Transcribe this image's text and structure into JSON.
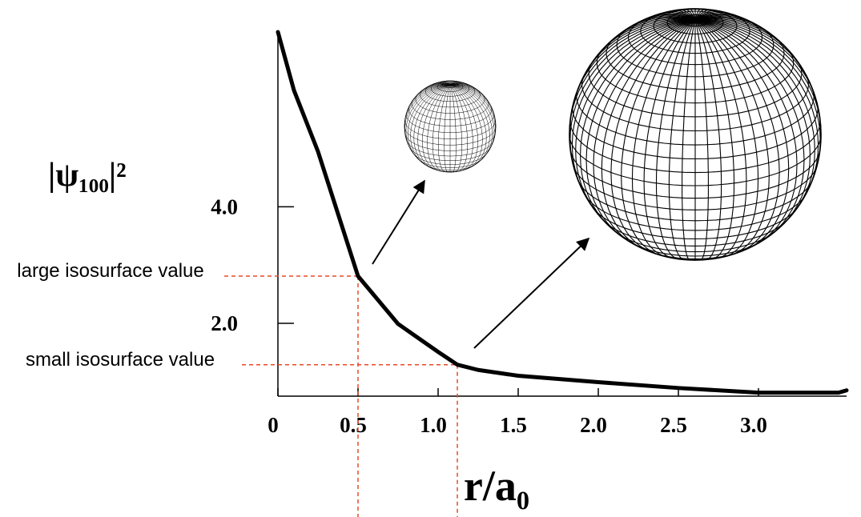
{
  "chart_data": {
    "type": "line",
    "ylabel": "|ψ₁₀₀|²",
    "xlabel": "r/a₀",
    "x": [
      0,
      0.1,
      0.25,
      0.5,
      0.75,
      1.0,
      1.12,
      1.25,
      1.5,
      2.0,
      2.5,
      3.0,
      3.5,
      3.55
    ],
    "series": [
      {
        "color": "#000000",
        "values": [
          7.0,
          6.0,
          4.95,
          2.81,
          1.99,
          1.51,
          1.29,
          1.2,
          1.1,
          0.99,
          0.89,
          0.81,
          0.81,
          0.85
        ]
      }
    ],
    "xlim": [
      0,
      3.55
    ],
    "ylim": [
      0.75,
      7.0
    ],
    "xticks": [
      0,
      0.5,
      {
        "value": 1,
        "label": "1.0"
      },
      1.5,
      {
        "value": 2,
        "label": "2.0"
      },
      2.5,
      {
        "value": 3,
        "label": "3.0"
      }
    ],
    "yticks": [
      {
        "value": 2,
        "label": "2.0"
      },
      {
        "value": 4,
        "label": "4.0"
      }
    ],
    "annotations": [
      {
        "text": "large isosurface value",
        "x": 0.5,
        "y": 2.81
      },
      {
        "text": "small isosurface value",
        "x": 1.12,
        "y": 1.29
      }
    ]
  }
}
